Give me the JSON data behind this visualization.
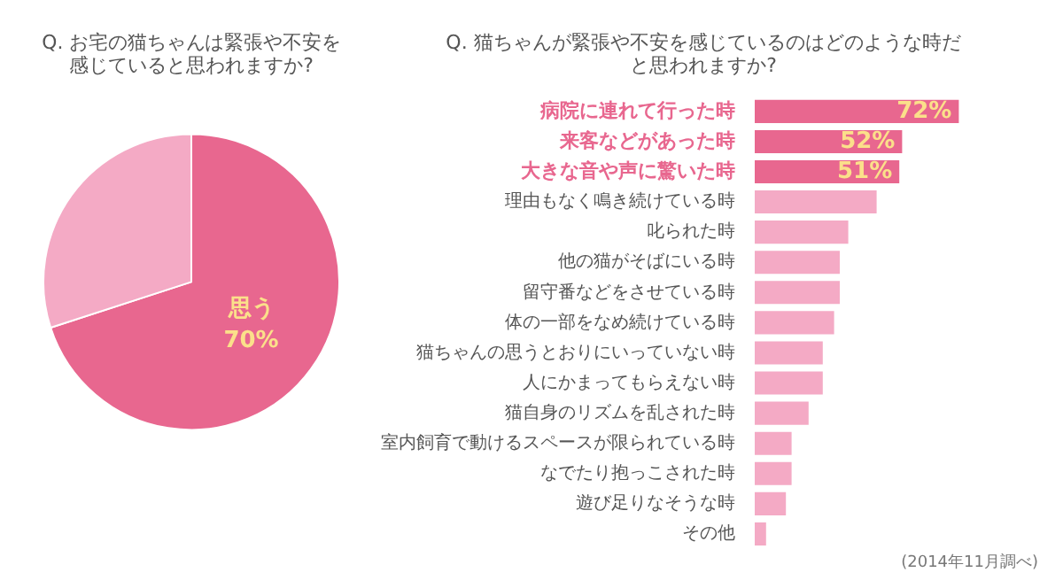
{
  "chart_data": [
    {
      "type": "pie",
      "title": "Q. お宅の猫ちゃんは緊張や不安を感じていると思われますか?",
      "categories": [
        "思う",
        null
      ],
      "values": [
        70,
        30
      ],
      "colors": [
        "#e8678f",
        "#f4aac5"
      ],
      "value_labels": [
        "70%",
        null
      ]
    },
    {
      "type": "bar",
      "orientation": "horizontal",
      "title": "Q. 猫ちゃんが緊張や不安を感じているのはどのような時だと思われますか?",
      "categories": [
        "病院に連れて行った時",
        "来客などがあった時",
        "大きな音や声に驚いた時",
        "理由もなく鳴き続けている時",
        "叱られた時",
        "他の猫がそばにいる時",
        "留守番などをさせている時",
        "体の一部をなめ続けている時",
        "猫ちゃんの思うとおりにいっていない時",
        "人にかまってもらえない時",
        "猫自身のリズムを乱された時",
        "室内飼育で動けるスペースが限られている時",
        "なでたり抱っこされた時",
        "遊び足りなそうな時",
        "その他"
      ],
      "values": [
        72,
        52,
        51,
        43,
        33,
        30,
        30,
        28,
        24,
        24,
        19,
        13,
        13,
        11,
        4
      ],
      "colors": [
        "#e8678f",
        "#e8678f",
        "#e8678f",
        "#f4aac5",
        "#f4aac5",
        "#f4aac5",
        "#f4aac5",
        "#f4aac5",
        "#f4aac5",
        "#f4aac5",
        "#f4aac5",
        "#f4aac5",
        "#f4aac5",
        "#f4aac5",
        "#f4aac5"
      ],
      "value_labels": [
        "72%",
        "52%",
        "51%",
        null,
        null,
        null,
        null,
        null,
        null,
        null,
        null,
        null,
        null,
        null,
        null
      ],
      "annotations": [
        "(2014年11月調べ)"
      ]
    }
  ]
}
